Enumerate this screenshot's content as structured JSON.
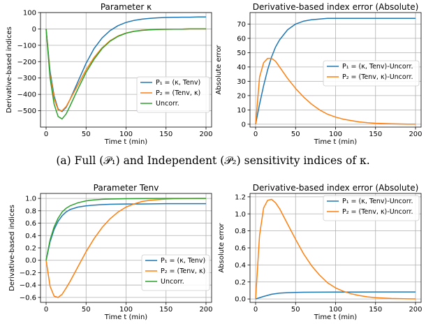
{
  "caption": "(a) Full (𝒫₁) and Independent (𝒫₂) sensitivity indices of κ.",
  "colors": {
    "p1": "#1f77b4",
    "p2": "#ff7f0e",
    "uncorr": "#2ca02c"
  },
  "chart_data": [
    {
      "type": "line",
      "title": "Parameter κ",
      "xlabel": "Time t (min)",
      "ylabel": "Derivative-based indices",
      "xlim": [
        -7,
        207
      ],
      "ylim": [
        -600,
        100
      ],
      "xticks": [
        0,
        50,
        100,
        150,
        200
      ],
      "yticks": [
        -500,
        -400,
        -300,
        -200,
        -100,
        0,
        100
      ],
      "grid": true,
      "legend": "bottom-right",
      "series": [
        {
          "name": "P₁ = (κ, Tenv)",
          "color": "#1f77b4",
          "x": [
            0,
            5,
            10,
            15,
            20,
            25,
            30,
            40,
            50,
            60,
            70,
            80,
            90,
            100,
            110,
            120,
            130,
            140,
            150,
            160,
            170,
            180,
            190,
            200
          ],
          "y": [
            0,
            -260,
            -410,
            -490,
            -505,
            -480,
            -430,
            -320,
            -210,
            -120,
            -55,
            -10,
            20,
            40,
            52,
            60,
            65,
            68,
            70,
            71,
            72,
            72,
            73,
            73
          ]
        },
        {
          "name": "P₂ = (Tenv, κ)",
          "color": "#ff7f0e",
          "x": [
            0,
            5,
            10,
            15,
            20,
            25,
            30,
            40,
            50,
            60,
            70,
            80,
            90,
            100,
            110,
            120,
            130,
            140,
            150,
            160,
            170,
            180,
            190,
            200
          ],
          "y": [
            0,
            -280,
            -425,
            -495,
            -500,
            -475,
            -430,
            -340,
            -250,
            -175,
            -115,
            -72,
            -43,
            -25,
            -14,
            -8,
            -5,
            -3,
            -2,
            -1,
            -1,
            0,
            0,
            0
          ]
        },
        {
          "name": "Uncorr.",
          "color": "#2ca02c",
          "x": [
            0,
            5,
            10,
            15,
            20,
            25,
            30,
            40,
            50,
            60,
            70,
            80,
            90,
            100,
            110,
            120,
            130,
            140,
            150,
            160,
            170,
            180,
            190,
            200
          ],
          "y": [
            0,
            -300,
            -460,
            -535,
            -550,
            -520,
            -470,
            -365,
            -265,
            -185,
            -120,
            -75,
            -45,
            -26,
            -15,
            -9,
            -5,
            -3,
            -2,
            -1,
            -1,
            0,
            0,
            0
          ]
        }
      ]
    },
    {
      "type": "line",
      "title": "Derivative-based index error (Absolute)",
      "xlabel": "Time t (min)",
      "ylabel": "Absolute error",
      "xlim": [
        -7,
        207
      ],
      "ylim": [
        -2,
        78
      ],
      "xticks": [
        0,
        50,
        100,
        150,
        200
      ],
      "yticks": [
        0,
        10,
        20,
        30,
        40,
        50,
        60,
        70
      ],
      "grid": true,
      "legend": "center-right",
      "series": [
        {
          "name": "P₁ = (κ, Tenv)-Uncorr.",
          "color": "#1f77b4",
          "x": [
            0,
            5,
            10,
            15,
            20,
            25,
            30,
            40,
            50,
            60,
            70,
            80,
            90,
            100,
            120,
            140,
            160,
            180,
            200
          ],
          "y": [
            0,
            14,
            27,
            38,
            47,
            54,
            59,
            66,
            70,
            72,
            73,
            73.5,
            74,
            74,
            74,
            74,
            74,
            74,
            74
          ]
        },
        {
          "name": "P₂ = (Tenv, κ)-Uncorr.",
          "color": "#ff7f0e",
          "x": [
            0,
            5,
            10,
            15,
            20,
            25,
            30,
            40,
            50,
            60,
            70,
            80,
            90,
            100,
            110,
            120,
            130,
            140,
            150,
            160,
            170,
            180,
            190,
            200
          ],
          "y": [
            0,
            33,
            43,
            46,
            46,
            44,
            40,
            32,
            25,
            19,
            14,
            10,
            7,
            5,
            3.5,
            2.5,
            1.6,
            1,
            0.7,
            0.5,
            0.3,
            0.2,
            0.1,
            0.1
          ]
        }
      ]
    },
    {
      "type": "line",
      "title": "Parameter Tenv",
      "xlabel": "Time t (min)",
      "ylabel": "Derivative-based indices",
      "xlim": [
        -7,
        207
      ],
      "ylim": [
        -0.68,
        1.08
      ],
      "xticks": [
        0,
        50,
        100,
        150,
        200
      ],
      "yticks": [
        -0.6,
        -0.4,
        -0.2,
        0.0,
        0.2,
        0.4,
        0.6,
        0.8,
        1.0
      ],
      "grid": true,
      "legend": "bottom-right",
      "series": [
        {
          "name": "P₁ = (κ, Tenv)",
          "color": "#1f77b4",
          "x": [
            0,
            5,
            10,
            15,
            20,
            25,
            30,
            40,
            50,
            60,
            70,
            80,
            100,
            120,
            150,
            200
          ],
          "y": [
            0,
            0.3,
            0.5,
            0.63,
            0.72,
            0.78,
            0.82,
            0.86,
            0.88,
            0.89,
            0.9,
            0.905,
            0.91,
            0.91,
            0.915,
            0.915
          ]
        },
        {
          "name": "P₂ = (Tenv, κ)",
          "color": "#ff7f0e",
          "x": [
            0,
            5,
            10,
            15,
            20,
            25,
            30,
            40,
            50,
            60,
            70,
            80,
            90,
            100,
            110,
            120,
            130,
            140,
            150,
            160,
            170,
            180,
            190,
            200
          ],
          "y": [
            0,
            -0.42,
            -0.58,
            -0.6,
            -0.55,
            -0.45,
            -0.34,
            -0.1,
            0.14,
            0.35,
            0.53,
            0.67,
            0.78,
            0.86,
            0.91,
            0.95,
            0.97,
            0.98,
            0.99,
            0.995,
            0.997,
            0.998,
            1.0,
            1.0
          ]
        },
        {
          "name": "Uncorr.",
          "color": "#2ca02c",
          "x": [
            0,
            5,
            10,
            15,
            20,
            25,
            30,
            40,
            50,
            60,
            70,
            80,
            100,
            120,
            150,
            200
          ],
          "y": [
            0,
            0.33,
            0.54,
            0.68,
            0.78,
            0.84,
            0.88,
            0.93,
            0.96,
            0.975,
            0.985,
            0.99,
            0.995,
            0.998,
            1.0,
            1.0
          ]
        }
      ]
    },
    {
      "type": "line",
      "title": "Derivative-based index error (Absolute)",
      "xlabel": "Time t (min)",
      "ylabel": "Absolute error",
      "xlim": [
        -7,
        207
      ],
      "ylim": [
        -0.04,
        1.24
      ],
      "xticks": [
        0,
        50,
        100,
        150,
        200
      ],
      "yticks": [
        0.0,
        0.2,
        0.4,
        0.6,
        0.8,
        1.0,
        1.2
      ],
      "grid": true,
      "legend": "top-right",
      "series": [
        {
          "name": "P₁ = (κ, Tenv)-Uncorr.",
          "color": "#1f77b4",
          "x": [
            0,
            10,
            20,
            30,
            40,
            50,
            60,
            80,
            100,
            150,
            200
          ],
          "y": [
            0,
            0.03,
            0.055,
            0.068,
            0.074,
            0.077,
            0.079,
            0.08,
            0.081,
            0.082,
            0.082
          ]
        },
        {
          "name": "P₂ = (Tenv, κ)-Uncorr.",
          "color": "#ff7f0e",
          "x": [
            0,
            5,
            10,
            15,
            20,
            25,
            30,
            40,
            50,
            60,
            70,
            80,
            90,
            100,
            110,
            120,
            130,
            140,
            150,
            160,
            170,
            180,
            190,
            200
          ],
          "y": [
            0,
            0.75,
            1.07,
            1.16,
            1.17,
            1.13,
            1.06,
            0.88,
            0.7,
            0.53,
            0.39,
            0.28,
            0.19,
            0.13,
            0.09,
            0.06,
            0.04,
            0.025,
            0.016,
            0.01,
            0.006,
            0.004,
            0.002,
            0.001
          ]
        }
      ]
    }
  ]
}
